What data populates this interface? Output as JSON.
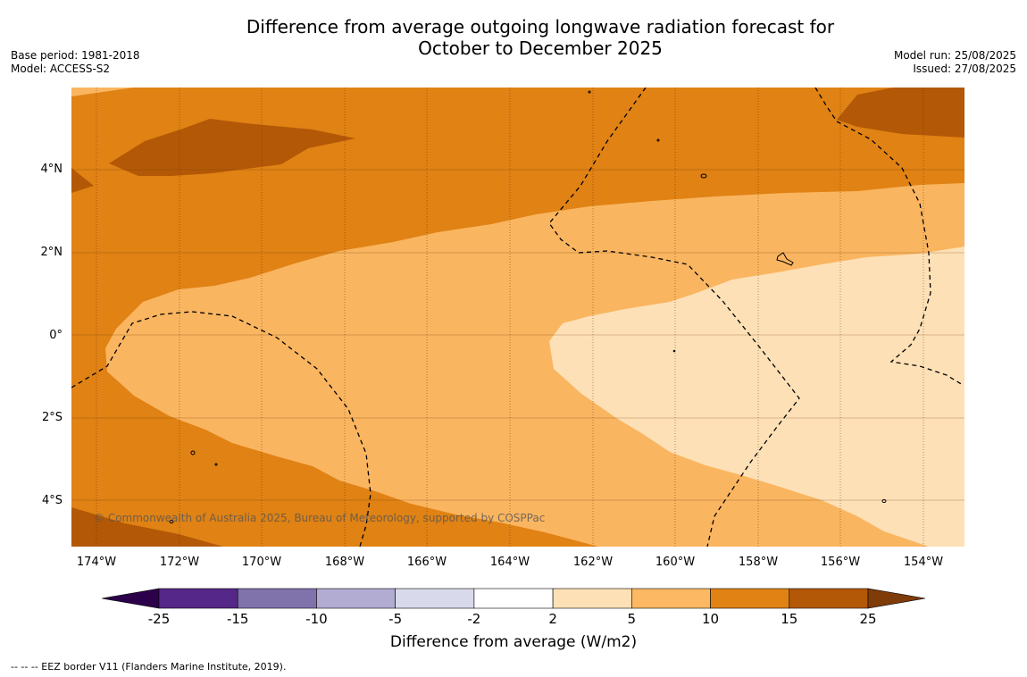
{
  "header": {
    "title_line1": "Difference from average outgoing longwave radiation forecast for",
    "title_line2": "October to December 2025",
    "base_period": "Base period: 1981-2018",
    "model": "Model: ACCESS-S2",
    "model_run": "Model run: 25/08/2025",
    "issued": "Issued: 27/08/2025"
  },
  "map": {
    "lat_labels": [
      "4°N",
      "2°N",
      "0°",
      "2°S",
      "4°S"
    ],
    "lon_labels": [
      "174°W",
      "172°W",
      "170°W",
      "168°W",
      "166°W",
      "164°W",
      "162°W",
      "160°W",
      "158°W",
      "156°W",
      "154°W"
    ],
    "copyright": "© Commonwealth of Australia 2025, Bureau of Meteorology, supported by COSPPac",
    "colors": {
      "c5_10": "#fab560",
      "c10_15": "#e08214",
      "c15_25": "#b35806",
      "c2_5": "#fee0b6"
    }
  },
  "colorbar": {
    "ticks": [
      "-25",
      "-15",
      "-10",
      "-5",
      "-2",
      "2",
      "5",
      "10",
      "15",
      "25"
    ],
    "colors": [
      "#2d004b",
      "#542788",
      "#8073ac",
      "#b2abd2",
      "#d8daeb",
      "#ffffff",
      "#fee0b6",
      "#fdb863",
      "#e08214",
      "#b35806",
      "#7f3b08"
    ],
    "title": "Difference from average (W/m2)"
  },
  "footnote": "-- -- -- EEZ border V11 (Flanders Marine Institute, 2019)."
}
